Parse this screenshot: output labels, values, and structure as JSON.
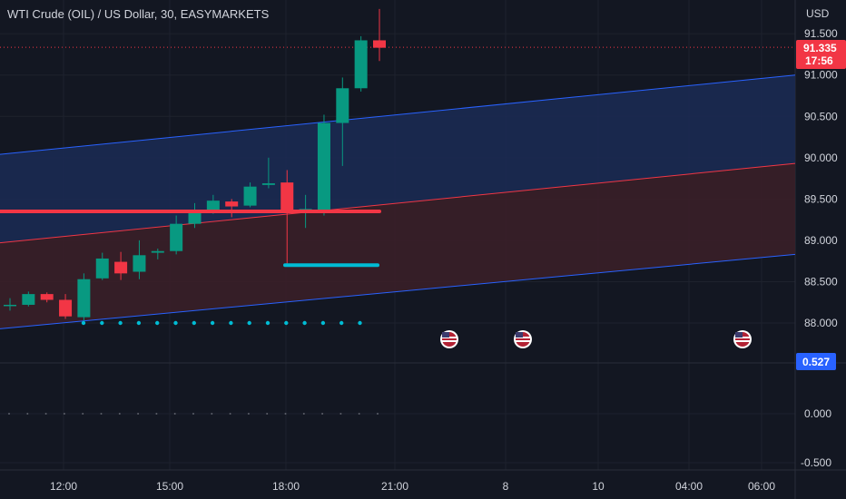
{
  "header": {
    "title": "WTI Crude (OIL) / US Dollar, 30, EASYMARKETS"
  },
  "colors": {
    "background": "#131722",
    "grid": "#1e222d",
    "up": "#089981",
    "down": "#f23645",
    "channel_line": "#2962ff",
    "mid_line": "#f23645",
    "upper_fill": "#1b2a52",
    "lower_fill": "#3a1f28",
    "support_line": "#f23645",
    "level_line": "#00bcd4",
    "dots": "#00bcd4",
    "oscillator_tag": "#2962ff",
    "price_tag": "#f23645"
  },
  "price_scale": {
    "currency": "USD",
    "ticks": [
      "91.500",
      "91.000",
      "90.500",
      "90.000",
      "89.500",
      "89.000",
      "88.500",
      "88.000"
    ],
    "last_price": "91.335",
    "countdown": "17:56"
  },
  "oscillator": {
    "value": "0.527",
    "ticks": [
      "0.000",
      "-0.500"
    ]
  },
  "time_axis": {
    "labels": [
      "12:00",
      "15:00",
      "18:00",
      "21:00",
      "8",
      "10",
      "04:00",
      "06:00"
    ]
  },
  "events": [
    {
      "icon": "us-flag-icon",
      "label": "US economic event"
    },
    {
      "icon": "us-flag-icon",
      "label": "US economic event"
    },
    {
      "icon": "us-flag-icon",
      "label": "US economic event"
    }
  ],
  "chart_data": {
    "type": "candlestick",
    "title": "WTI Crude (OIL) / US Dollar, 30, EASYMARKETS",
    "ylabel": "USD",
    "ylim": [
      87.5,
      91.9
    ],
    "grid": true,
    "candles": [
      {
        "o": 88.22,
        "h": 88.3,
        "l": 88.15,
        "c": 88.22
      },
      {
        "o": 88.22,
        "h": 88.38,
        "l": 88.2,
        "c": 88.35
      },
      {
        "o": 88.35,
        "h": 88.37,
        "l": 88.25,
        "c": 88.28
      },
      {
        "o": 88.28,
        "h": 88.35,
        "l": 88.05,
        "c": 88.08
      },
      {
        "o": 88.07,
        "h": 88.6,
        "l": 88.03,
        "c": 88.53
      },
      {
        "o": 88.54,
        "h": 88.85,
        "l": 88.52,
        "c": 88.78
      },
      {
        "o": 88.74,
        "h": 88.86,
        "l": 88.52,
        "c": 88.6
      },
      {
        "o": 88.62,
        "h": 89.0,
        "l": 88.53,
        "c": 88.82
      },
      {
        "o": 88.85,
        "h": 88.9,
        "l": 88.77,
        "c": 88.87
      },
      {
        "o": 88.87,
        "h": 89.3,
        "l": 88.83,
        "c": 89.2
      },
      {
        "o": 89.2,
        "h": 89.45,
        "l": 89.15,
        "c": 89.35
      },
      {
        "o": 89.35,
        "h": 89.55,
        "l": 89.32,
        "c": 89.48
      },
      {
        "o": 89.47,
        "h": 89.5,
        "l": 89.28,
        "c": 89.41
      },
      {
        "o": 89.42,
        "h": 89.7,
        "l": 89.4,
        "c": 89.65
      },
      {
        "o": 89.67,
        "h": 90.0,
        "l": 89.63,
        "c": 89.69
      },
      {
        "o": 89.7,
        "h": 89.85,
        "l": 88.72,
        "c": 89.37
      },
      {
        "o": 89.37,
        "h": 89.55,
        "l": 89.15,
        "c": 89.38
      },
      {
        "o": 89.36,
        "h": 90.52,
        "l": 89.3,
        "c": 90.42
      },
      {
        "o": 90.42,
        "h": 90.97,
        "l": 89.9,
        "c": 90.84
      },
      {
        "o": 90.84,
        "h": 91.47,
        "l": 90.8,
        "c": 91.42
      },
      {
        "o": 91.42,
        "h": 91.8,
        "l": 91.17,
        "c": 91.33
      }
    ],
    "channel": {
      "upper": [
        90.04,
        91.0
      ],
      "middle": [
        88.97,
        89.93
      ],
      "lower": [
        87.93,
        88.83
      ]
    },
    "support_level": 89.35,
    "level_line": 88.7,
    "last_price": 91.335,
    "oscillator_value": 0.527
  }
}
